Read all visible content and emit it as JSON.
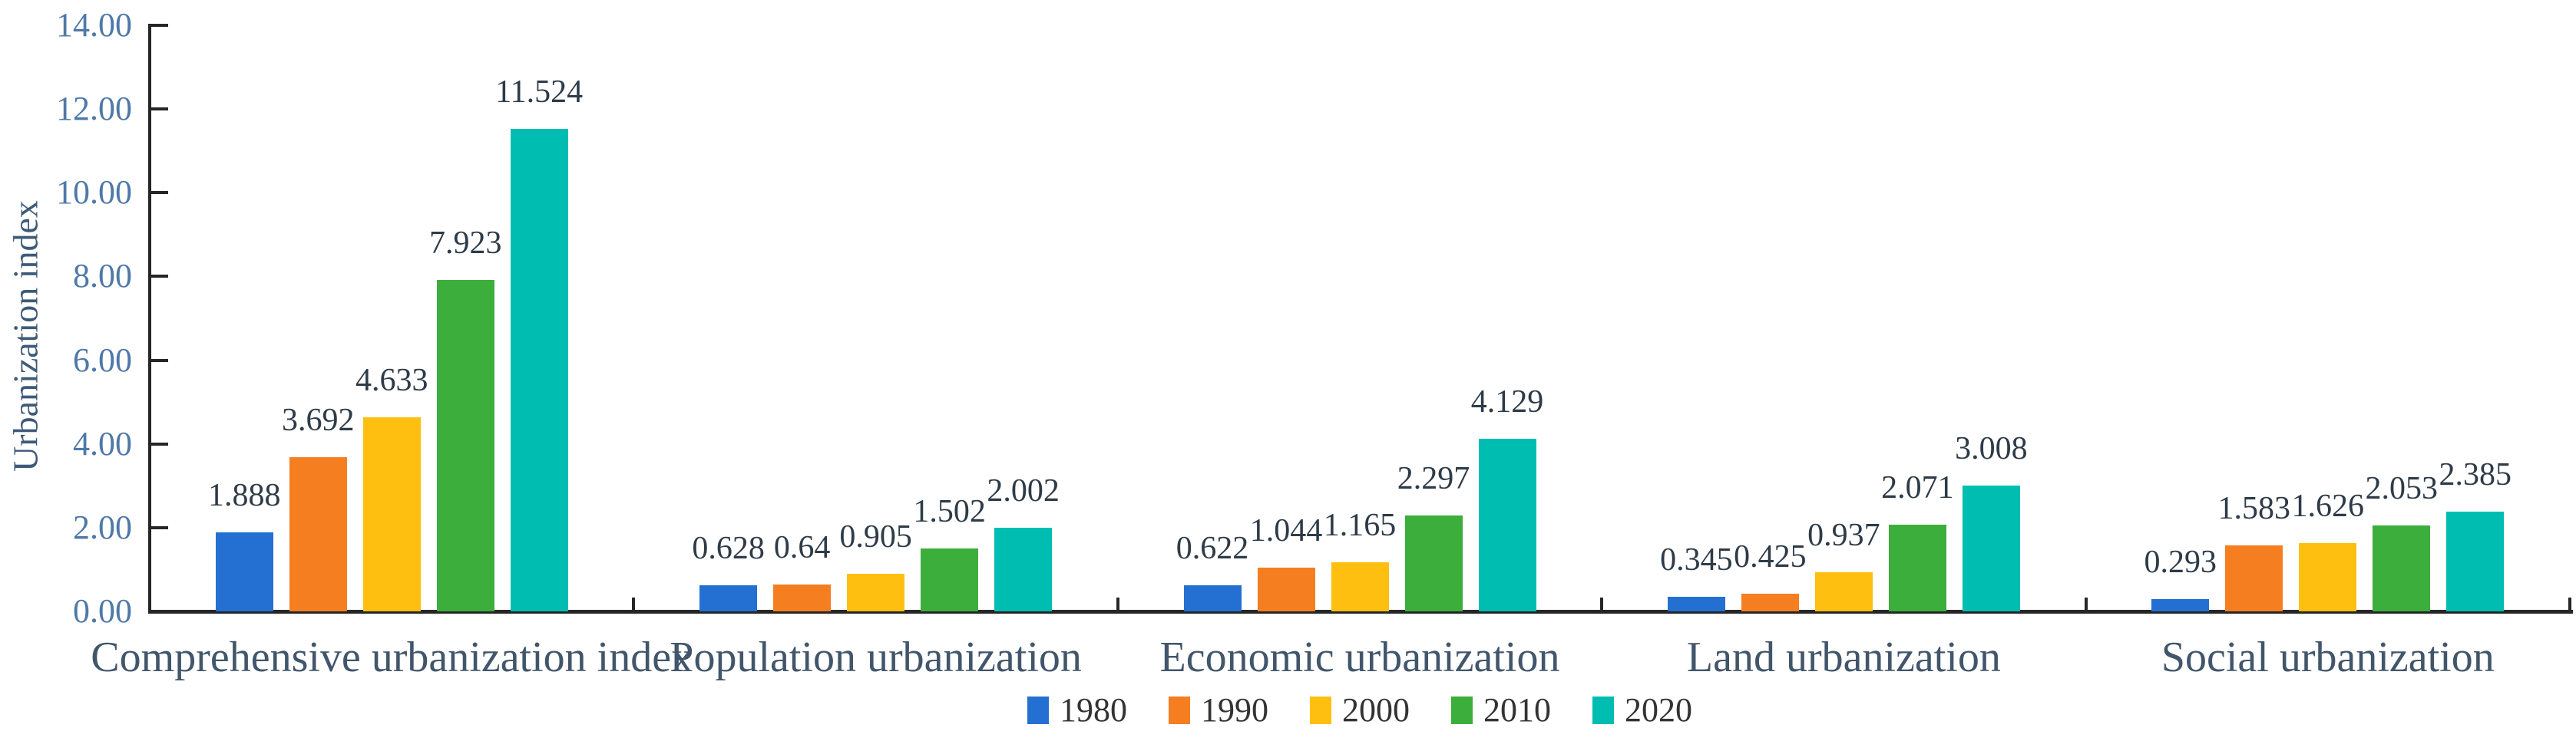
{
  "chart_data": {
    "type": "bar",
    "title": "",
    "ylabel": "Urbanization index",
    "xlabel": "",
    "ylim": [
      0,
      14
    ],
    "ytick_labels": [
      "0.00",
      "2.00",
      "4.00",
      "6.00",
      "8.00",
      "10.00",
      "12.00",
      "14.00"
    ],
    "grid": false,
    "legend_position": "bottom-center",
    "categories": [
      "Comprehensive urbanization index",
      "Population urbanization",
      "Economic urbanization",
      "Land urbanization",
      "Social urbanization"
    ],
    "series": [
      {
        "name": "1980",
        "color": "#2470D2",
        "values": [
          1.888,
          0.628,
          0.622,
          0.345,
          0.293
        ],
        "labels": [
          "1.888",
          "0.628",
          "0.622",
          "0.345",
          "0.293"
        ]
      },
      {
        "name": "1990",
        "color": "#F57E20",
        "values": [
          3.692,
          0.64,
          1.044,
          0.425,
          1.583
        ],
        "labels": [
          "3.692",
          "0.64",
          "1.044",
          "0.425",
          "1.583"
        ]
      },
      {
        "name": "2000",
        "color": "#FEBF10",
        "values": [
          4.633,
          0.905,
          1.165,
          0.937,
          1.626
        ],
        "labels": [
          "4.633",
          "0.905",
          "1.165",
          "0.937",
          "1.626"
        ]
      },
      {
        "name": "2010",
        "color": "#3CAE3C",
        "values": [
          7.923,
          1.502,
          2.297,
          2.071,
          2.053
        ],
        "labels": [
          "7.923",
          "1.502",
          "2.297",
          "2.071",
          "2.053"
        ]
      },
      {
        "name": "2020",
        "color": "#00BDB2",
        "values": [
          11.524,
          2.002,
          4.129,
          3.008,
          2.385
        ],
        "labels": [
          "11.524",
          "2.002",
          "4.129",
          "3.008",
          "2.385"
        ]
      }
    ]
  },
  "colors": {
    "axis": "#262626",
    "tick_text": "#4E79A8",
    "ylabel_text": "#3E5A78",
    "category_text": "#41566B",
    "value_text": "#2E3B48",
    "legend_text": "#333333",
    "background": "#FFFFFF"
  }
}
